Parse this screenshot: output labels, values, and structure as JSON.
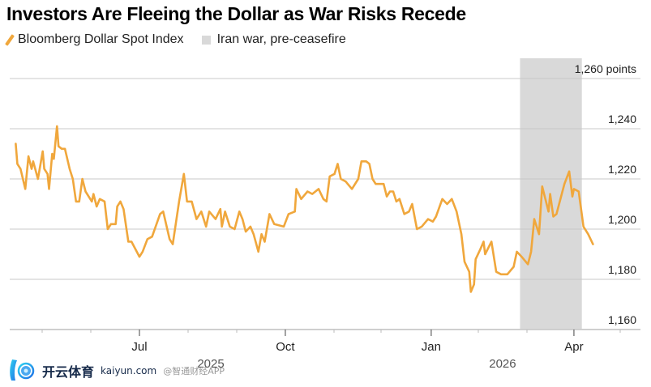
{
  "chart_data": {
    "type": "line",
    "title": "Investors Are Fleeing the Dollar as War Risks Recede",
    "legend": [
      {
        "label": "Bloomberg Dollar Spot Index",
        "kind": "line",
        "color": "#f0a73c"
      },
      {
        "label": "Iran war, pre-ceasefire",
        "kind": "shade",
        "color": "#d9d9d9"
      }
    ],
    "legend_placement": "top-left",
    "y_unit_label": "1,260 points",
    "ylim": [
      1160,
      1260
    ],
    "yticks": [
      {
        "value": 1260,
        "label": "1,260 points"
      },
      {
        "value": 1240,
        "label": "1,240"
      },
      {
        "value": 1220,
        "label": "1,220"
      },
      {
        "value": 1200,
        "label": "1,200"
      },
      {
        "value": 1180,
        "label": "1,180"
      },
      {
        "value": 1160,
        "label": "1,160"
      }
    ],
    "xticks": [
      {
        "date": "2025-07-01",
        "label": "Jul"
      },
      {
        "date": "2025-10-01",
        "label": "Oct"
      },
      {
        "date": "2026-01-01",
        "label": "Jan"
      },
      {
        "date": "2026-04-01",
        "label": "Apr"
      }
    ],
    "year_labels": [
      {
        "date": "2025-08-15",
        "label": "2025"
      },
      {
        "date": "2026-02-15",
        "label": "2026"
      }
    ],
    "grid": true,
    "shaded_range": {
      "start": "2026-02-26",
      "end": "2026-04-06",
      "label": "Iran war, pre-ceasefire"
    },
    "series": [
      {
        "name": "Bloomberg Dollar Spot Index",
        "color": "#f0a73c",
        "x": [
          "2025-04-14",
          "2025-04-15",
          "2025-04-17",
          "2025-04-20",
          "2025-04-22",
          "2025-04-24",
          "2025-04-25",
          "2025-04-28",
          "2025-05-01",
          "2025-05-02",
          "2025-05-04",
          "2025-05-05",
          "2025-05-07",
          "2025-05-08",
          "2025-05-10",
          "2025-05-11",
          "2025-05-13",
          "2025-05-15",
          "2025-05-18",
          "2025-05-20",
          "2025-05-22",
          "2025-05-24",
          "2025-05-26",
          "2025-05-28",
          "2025-06-01",
          "2025-06-02",
          "2025-06-04",
          "2025-06-06",
          "2025-06-09",
          "2025-06-11",
          "2025-06-13",
          "2025-06-16",
          "2025-06-17",
          "2025-06-19",
          "2025-06-21",
          "2025-06-24",
          "2025-06-26",
          "2025-07-01",
          "2025-07-03",
          "2025-07-06",
          "2025-07-09",
          "2025-07-14",
          "2025-07-16",
          "2025-07-20",
          "2025-07-22",
          "2025-07-26",
          "2025-07-29",
          "2025-07-31",
          "2025-08-03",
          "2025-08-06",
          "2025-08-09",
          "2025-08-12",
          "2025-08-14",
          "2025-08-18",
          "2025-08-21",
          "2025-08-22",
          "2025-08-24",
          "2025-08-27",
          "2025-08-30",
          "2025-09-02",
          "2025-09-04",
          "2025-09-06",
          "2025-09-09",
          "2025-09-11",
          "2025-09-14",
          "2025-09-16",
          "2025-09-18",
          "2025-09-21",
          "2025-09-24",
          "2025-09-30",
          "2025-10-03",
          "2025-10-07",
          "2025-10-08",
          "2025-10-11",
          "2025-10-15",
          "2025-10-18",
          "2025-10-22",
          "2025-10-25",
          "2025-10-27",
          "2025-10-29",
          "2025-11-01",
          "2025-11-03",
          "2025-11-05",
          "2025-11-08",
          "2025-11-12",
          "2025-11-16",
          "2025-11-18",
          "2025-11-21",
          "2025-11-23",
          "2025-11-25",
          "2025-11-27",
          "2025-12-02",
          "2025-12-04",
          "2025-12-06",
          "2025-12-08",
          "2025-12-10",
          "2025-12-12",
          "2025-12-15",
          "2025-12-18",
          "2025-12-20",
          "2025-12-23",
          "2025-12-26",
          "2025-12-30",
          "2026-01-02",
          "2026-01-04",
          "2026-01-08",
          "2026-01-11",
          "2026-01-14",
          "2026-01-17",
          "2026-01-20",
          "2026-01-22",
          "2026-01-25",
          "2026-01-26",
          "2026-01-28",
          "2026-01-29",
          "2026-02-01",
          "2026-02-03",
          "2026-02-04",
          "2026-02-08",
          "2026-02-11",
          "2026-02-14",
          "2026-02-18",
          "2026-02-22",
          "2026-02-24",
          "2026-02-27",
          "2026-03-03",
          "2026-03-05",
          "2026-03-07",
          "2026-03-10",
          "2026-03-12",
          "2026-03-16",
          "2026-03-17",
          "2026-03-19",
          "2026-03-21",
          "2026-03-26",
          "2026-03-29",
          "2026-03-31",
          "2026-04-01",
          "2026-04-04",
          "2026-04-07",
          "2026-04-10",
          "2026-04-13"
        ],
        "values": [
          1234,
          1226,
          1224,
          1216,
          1229,
          1224,
          1227,
          1220,
          1231,
          1224,
          1222,
          1216,
          1230,
          1228,
          1241,
          1233,
          1232,
          1232,
          1224,
          1220,
          1211,
          1211,
          1220,
          1215,
          1211,
          1214,
          1209,
          1212,
          1211,
          1200,
          1202,
          1202,
          1209,
          1211,
          1208,
          1195,
          1195,
          1189,
          1191,
          1196,
          1197,
          1206,
          1207,
          1196,
          1194,
          1211,
          1222,
          1211,
          1211,
          1204,
          1207,
          1201,
          1207,
          1204,
          1208,
          1201,
          1207,
          1201,
          1200,
          1207,
          1204,
          1199,
          1201,
          1198,
          1191,
          1198,
          1195,
          1206,
          1202,
          1201,
          1206,
          1207,
          1216,
          1212,
          1215,
          1214,
          1216,
          1212,
          1211,
          1221,
          1222,
          1226,
          1220,
          1219,
          1216,
          1220,
          1227,
          1227,
          1226,
          1220,
          1218,
          1218,
          1213,
          1215,
          1215,
          1211,
          1212,
          1206,
          1207,
          1210,
          1200,
          1201,
          1204,
          1203,
          1205,
          1212,
          1210,
          1212,
          1207,
          1198,
          1187,
          1183,
          1175,
          1178,
          1188,
          1192,
          1195,
          1190,
          1195,
          1183,
          1182,
          1182,
          1185,
          1191,
          1189,
          1186,
          1191,
          1204,
          1198,
          1217,
          1207,
          1214,
          1205,
          1206,
          1218,
          1223,
          1213,
          1216,
          1215,
          1201,
          1198,
          1194
        ]
      }
    ]
  },
  "watermark": {
    "brand": "开云体育",
    "site": "kaiyun.com",
    "credit": "@智通财经APP"
  }
}
